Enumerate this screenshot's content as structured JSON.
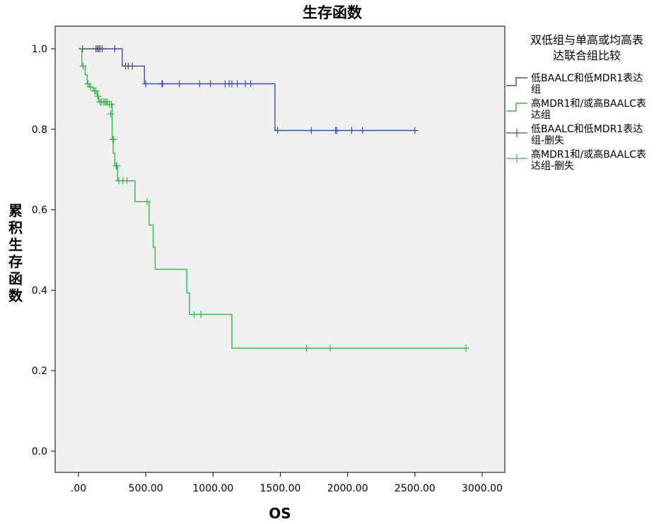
{
  "chart_data": {
    "type": "line",
    "title": "生存函数",
    "xlabel": "OS",
    "ylabel": "累积生存函数",
    "xlim": [
      -150,
      3150
    ],
    "ylim": [
      -0.06,
      1.06
    ],
    "x_ticks": [
      0,
      500,
      1000,
      1500,
      2000,
      2500,
      3000
    ],
    "x_tick_labels": [
      ".00",
      "500.00",
      "1000.00",
      "1500.00",
      "2000.00",
      "2500.00",
      "3000.00"
    ],
    "y_ticks": [
      0.0,
      0.2,
      0.4,
      0.6,
      0.8,
      1.0
    ],
    "y_tick_labels": [
      "0.0",
      "0.2",
      "0.4",
      "0.6",
      "0.8",
      "1.0"
    ],
    "legend": {
      "title": "双低组与单高或均高表达联合组比较",
      "position": "right",
      "entries": [
        {
          "label_lines": [
            "低BAALC和低MDR1表达",
            "组"
          ],
          "symbol": "step",
          "color": "#3F4FA6"
        },
        {
          "label_lines": [
            "高MDR1和/或高BAALC表",
            "达组"
          ],
          "symbol": "step",
          "color": "#35B54A"
        },
        {
          "label_lines": [
            "低BAALC和低MDR1表达",
            "组-删失"
          ],
          "symbol": "cross",
          "color": "#3F4FA6"
        },
        {
          "label_lines": [
            "高MDR1和/或高BAALC表",
            "达组-删失"
          ],
          "symbol": "cross",
          "color": "#35B54A"
        }
      ]
    },
    "series": [
      {
        "name": "低BAALC和低MDR1表达组",
        "color": "#3F4FA6",
        "steps": [
          [
            0,
            1.0
          ],
          [
            325,
            0.957
          ],
          [
            490,
            0.913
          ],
          [
            1460,
            0.797
          ],
          [
            2500,
            0.797
          ]
        ],
        "censored": [
          [
            30,
            1.0
          ],
          [
            130,
            1.0
          ],
          [
            140,
            1.0
          ],
          [
            150,
            1.0
          ],
          [
            160,
            1.0
          ],
          [
            175,
            1.0
          ],
          [
            270,
            1.0
          ],
          [
            350,
            0.957
          ],
          [
            370,
            0.957
          ],
          [
            400,
            0.957
          ],
          [
            500,
            0.913
          ],
          [
            620,
            0.913
          ],
          [
            625,
            0.913
          ],
          [
            750,
            0.913
          ],
          [
            900,
            0.913
          ],
          [
            980,
            0.913
          ],
          [
            1090,
            0.913
          ],
          [
            1120,
            0.913
          ],
          [
            1140,
            0.913
          ],
          [
            1180,
            0.913
          ],
          [
            1240,
            0.913
          ],
          [
            1280,
            0.913
          ],
          [
            1480,
            0.797
          ],
          [
            1730,
            0.797
          ],
          [
            1910,
            0.797
          ],
          [
            1920,
            0.797
          ],
          [
            2030,
            0.797
          ],
          [
            2110,
            0.797
          ],
          [
            2500,
            0.797
          ]
        ]
      },
      {
        "name": "高MDR1和/或高BAALC表达组",
        "color": "#35B54A",
        "steps": [
          [
            0,
            1.0
          ],
          [
            25,
            0.957
          ],
          [
            50,
            0.935
          ],
          [
            65,
            0.913
          ],
          [
            80,
            0.905
          ],
          [
            110,
            0.895
          ],
          [
            140,
            0.882
          ],
          [
            150,
            0.868
          ],
          [
            215,
            0.862
          ],
          [
            250,
            0.775
          ],
          [
            258,
            0.741
          ],
          [
            270,
            0.709
          ],
          [
            290,
            0.672
          ],
          [
            420,
            0.62
          ],
          [
            525,
            0.562
          ],
          [
            555,
            0.507
          ],
          [
            570,
            0.452
          ],
          [
            805,
            0.393
          ],
          [
            825,
            0.34
          ],
          [
            1140,
            0.256
          ],
          [
            2880,
            0.256
          ]
        ],
        "censored": [
          [
            35,
            0.957
          ],
          [
            70,
            0.913
          ],
          [
            90,
            0.905
          ],
          [
            120,
            0.895
          ],
          [
            130,
            0.895
          ],
          [
            145,
            0.882
          ],
          [
            160,
            0.868
          ],
          [
            170,
            0.868
          ],
          [
            185,
            0.868
          ],
          [
            195,
            0.868
          ],
          [
            205,
            0.868
          ],
          [
            215,
            0.868
          ],
          [
            230,
            0.862
          ],
          [
            245,
            0.862
          ],
          [
            240,
            0.838
          ],
          [
            255,
            0.775
          ],
          [
            262,
            0.775
          ],
          [
            280,
            0.709
          ],
          [
            285,
            0.709
          ],
          [
            300,
            0.672
          ],
          [
            330,
            0.672
          ],
          [
            360,
            0.672
          ],
          [
            510,
            0.62
          ],
          [
            860,
            0.34
          ],
          [
            910,
            0.34
          ],
          [
            1695,
            0.256
          ],
          [
            1870,
            0.256
          ],
          [
            2880,
            0.256
          ]
        ]
      }
    ]
  }
}
